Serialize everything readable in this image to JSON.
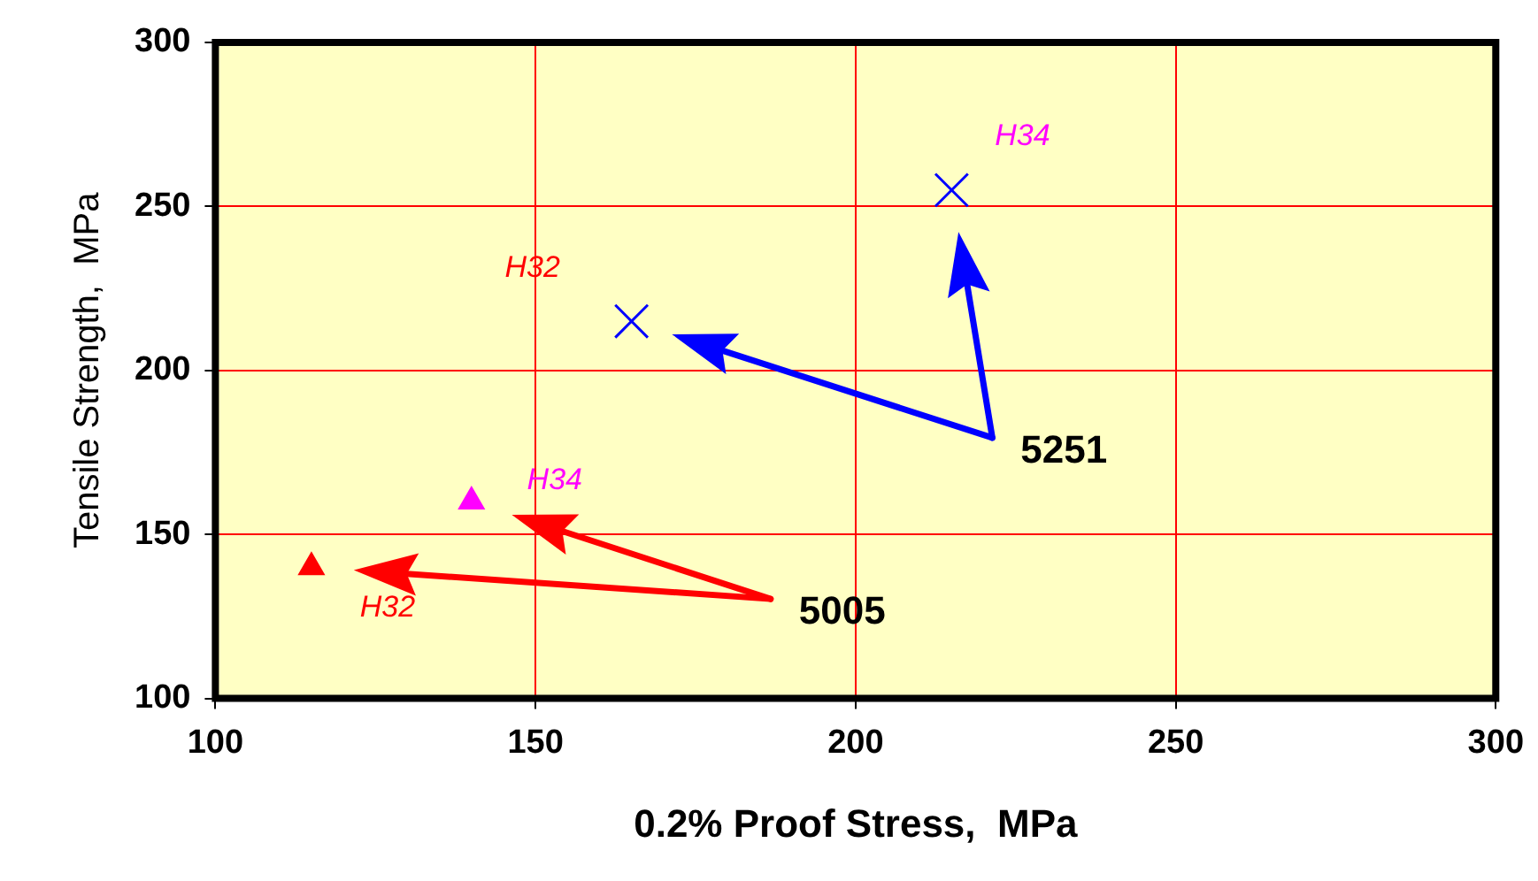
{
  "chart_data": {
    "type": "scatter",
    "xlabel": "0.2% Proof Stress,  MPa",
    "ylabel": "Tensile Strength,  MPa",
    "series": [
      {
        "type": "scatter",
        "marker": "triangle",
        "x": [
          115,
          140
        ],
        "values": [
          140,
          160
        ],
        "colors": [
          "#ff0000",
          "#ff00ff"
        ]
      },
      {
        "type": "scatter",
        "marker": "cross",
        "x": [
          165,
          215
        ],
        "values": [
          215,
          255
        ],
        "colors": [
          "#0000ff",
          "#0000ff"
        ]
      }
    ],
    "xlim": [
      100,
      300
    ],
    "xticks": [
      100,
      150,
      200,
      250,
      300
    ],
    "ylim": [
      100,
      300
    ],
    "yticks": [
      100,
      150,
      200,
      250,
      300
    ],
    "grid": true,
    "legend": false,
    "annotations": [
      "H32",
      "H34",
      "H32",
      "H34",
      "5005",
      "5251"
    ]
  }
}
